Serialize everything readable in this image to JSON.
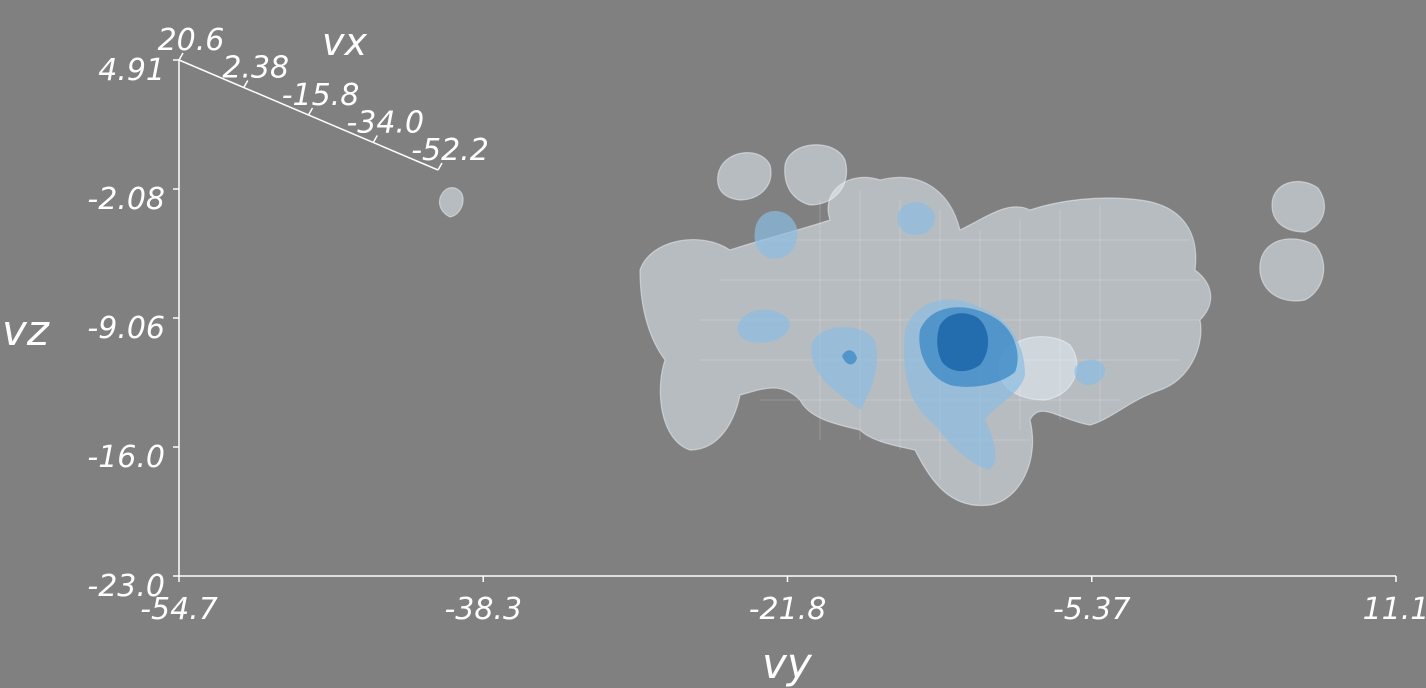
{
  "chart_data": {
    "type": "isosurface-3d",
    "axes": {
      "x": {
        "label": "vy",
        "range": [
          -54.7,
          11.1
        ],
        "ticks": [
          "-54.7",
          "-38.3",
          "-21.8",
          "-5.37",
          "11.1"
        ]
      },
      "z": {
        "label": "vz",
        "range": [
          -23.0,
          4.91
        ],
        "ticks": [
          "4.91",
          "-2.08",
          "-9.06",
          "-16.0",
          "-23.0"
        ]
      },
      "depth": {
        "label": "vx",
        "range": [
          -52.2,
          20.6
        ],
        "ticks": [
          "20.6",
          "2.38",
          "-15.8",
          "-34.0",
          "-52.2"
        ]
      }
    },
    "iso_levels": [
      {
        "level": 1,
        "color": "#e4ecf4",
        "opacity": 0.55
      },
      {
        "level": 2,
        "color": "#8cbde2",
        "opacity": 0.7
      },
      {
        "level": 3,
        "color": "#3a88c6",
        "opacity": 0.75
      },
      {
        "level": 4,
        "color": "#1b65a8",
        "opacity": 0.85
      }
    ],
    "background": "#808080",
    "grid": false
  }
}
